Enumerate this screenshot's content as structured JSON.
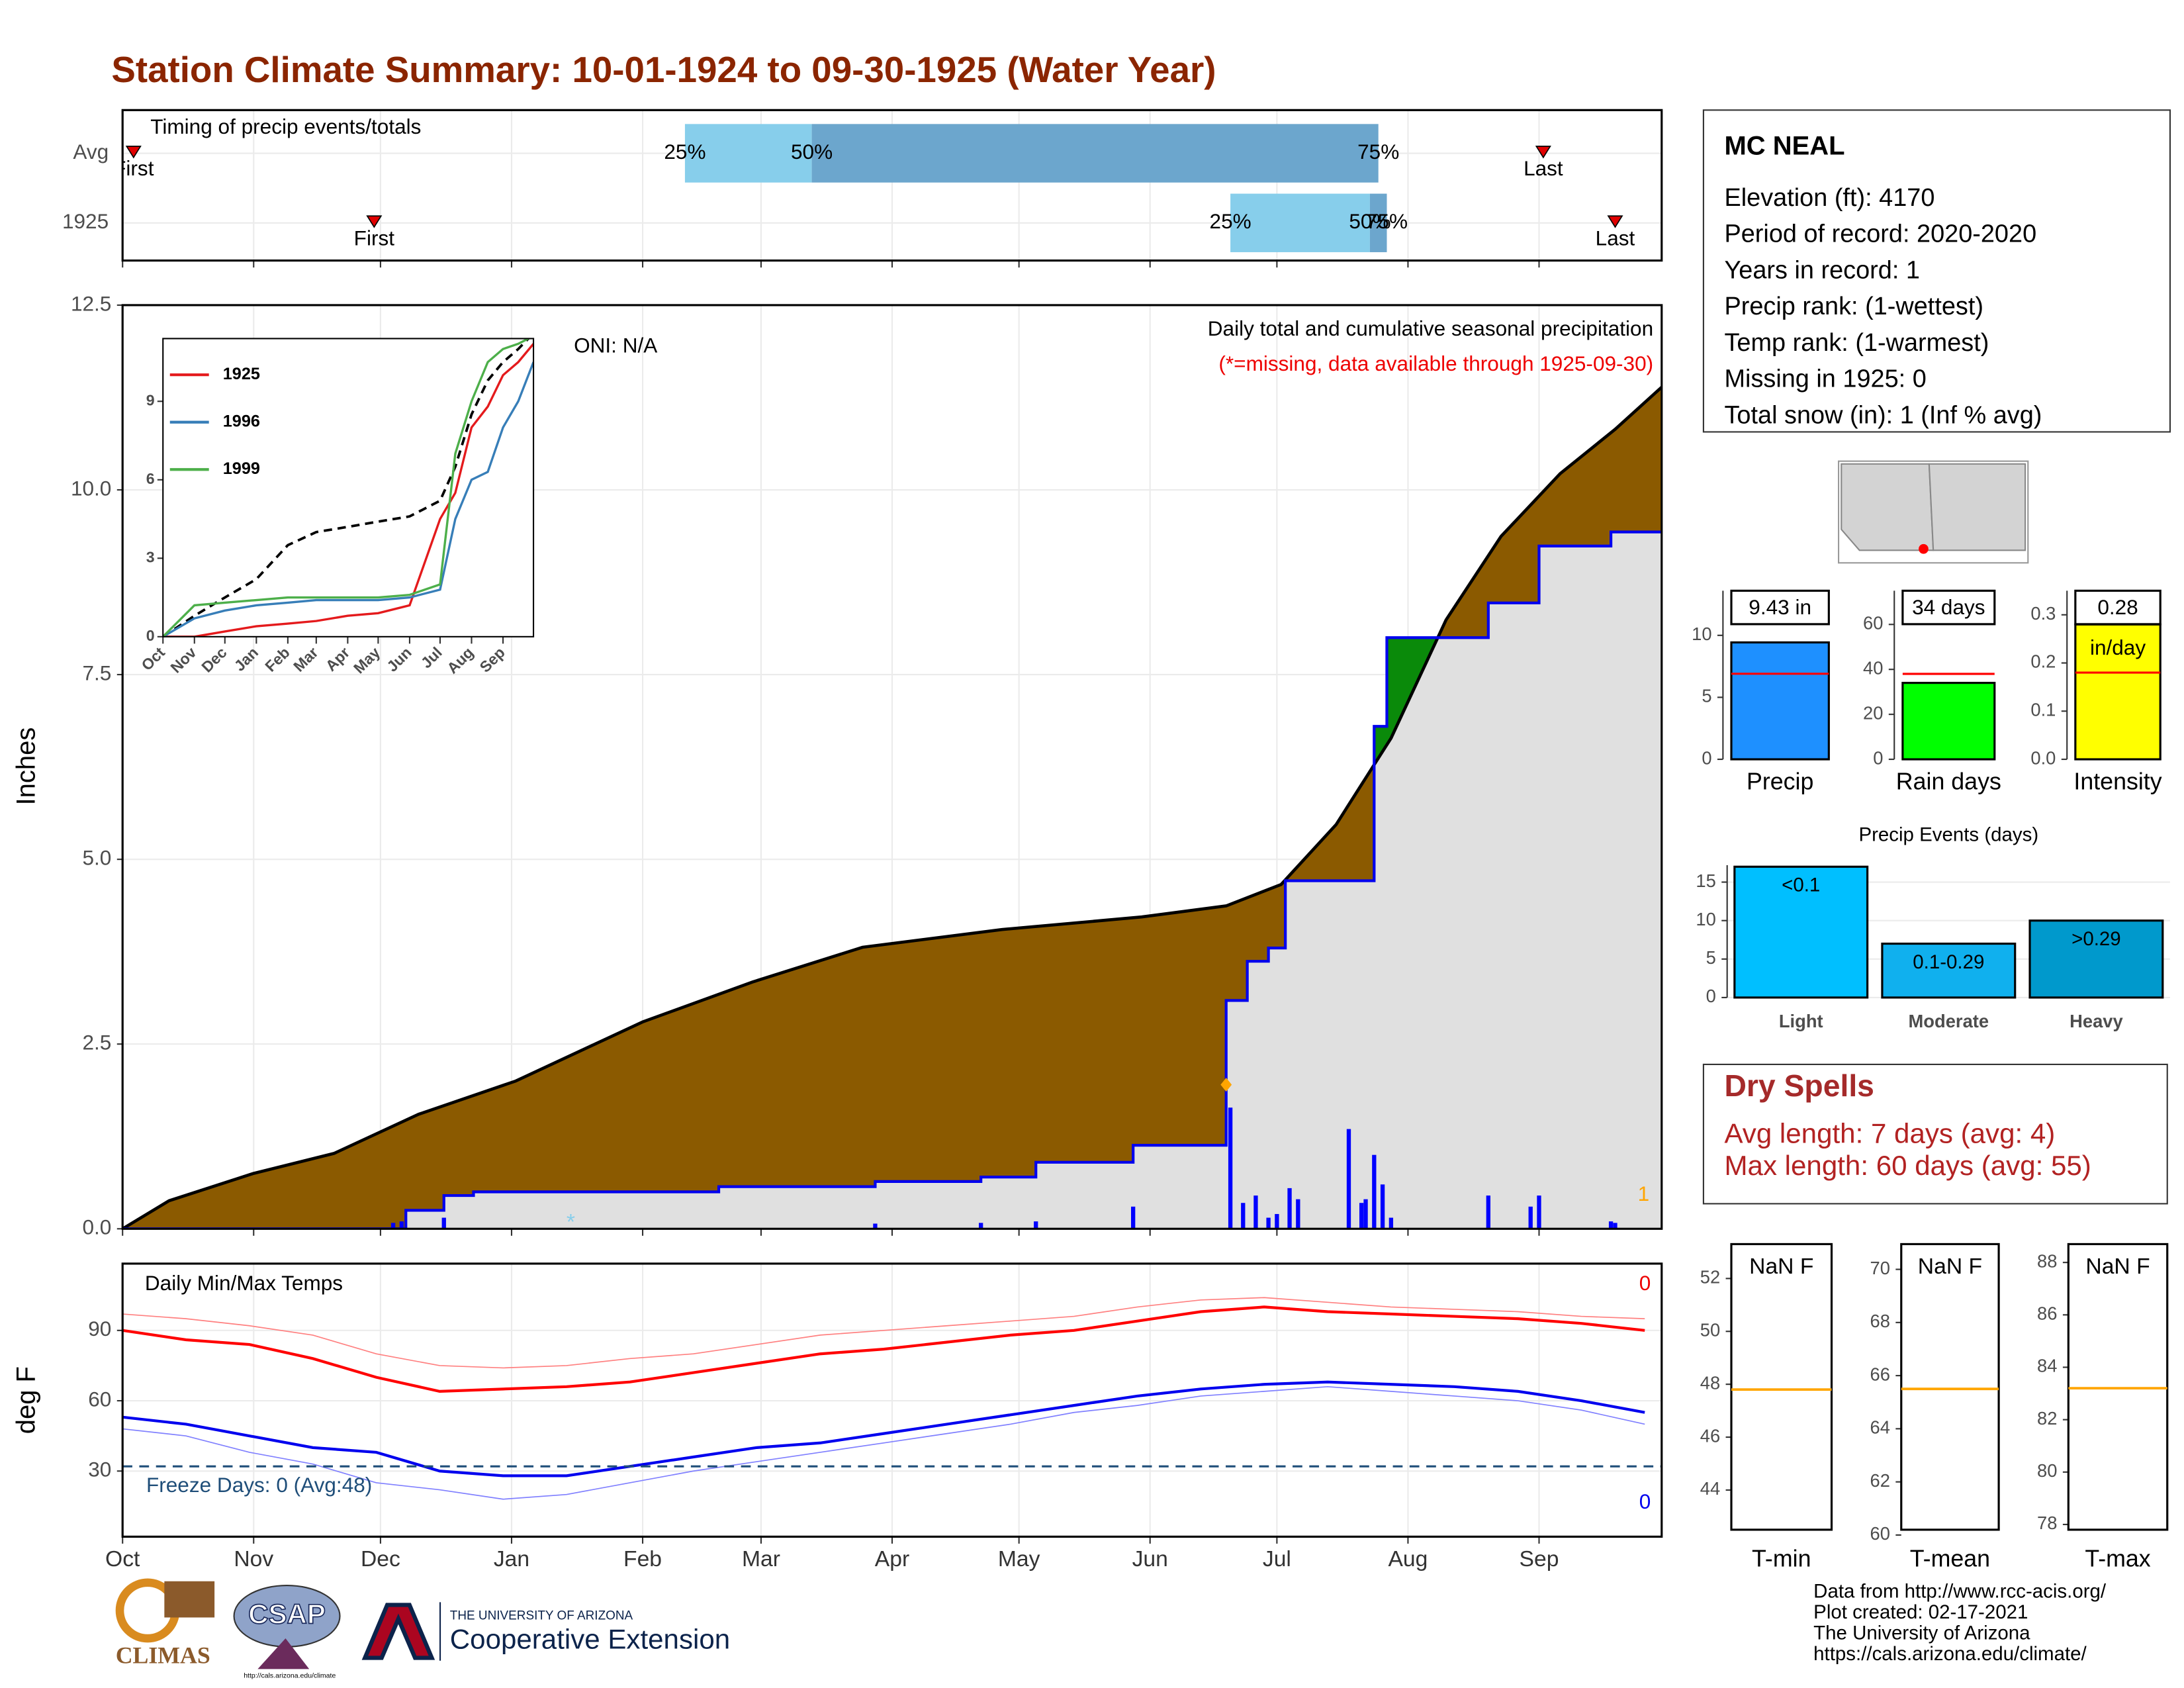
{
  "title": "Station Climate Summary: 10-01-1924 to 09-30-1925 (Water Year)",
  "chart_data": [
    {
      "type": "timing",
      "title": "Timing of precip events/totals",
      "categories": [
        "Avg",
        "1925"
      ],
      "first": [
        2.6,
        59.5
      ],
      "q25": [
        133,
        262
      ],
      "q50": [
        163,
        295
      ],
      "q75": [
        297,
        299
      ],
      "last": [
        336,
        353
      ],
      "labels": {
        "first": "First",
        "last": "Last",
        "q25": "25%",
        "q50": "50%",
        "q75": "75%"
      },
      "colors": {
        "q25": "#87ceeb",
        "q50": "#6ca6cd",
        "marker": "#e00000"
      },
      "xlim": [
        0,
        364
      ],
      "xticks": [
        0,
        31,
        61,
        92,
        123,
        151,
        182,
        212,
        243,
        273,
        304,
        335
      ],
      "grid": true
    },
    {
      "type": "cumulative",
      "title": "Daily total and cumulative seasonal precipitation",
      "subtitle": "(*=missing, data available through 1925-09-30)",
      "annotation": "ONI: N/A",
      "ylabel": "Inches",
      "xlim": [
        0,
        364
      ],
      "xticks": [
        0,
        31,
        61,
        92,
        123,
        151,
        182,
        212,
        243,
        273,
        304,
        335
      ],
      "ylim": [
        0,
        12.5
      ],
      "yticks": [
        {
          "value": 0,
          "label": "0.0"
        },
        2.5,
        {
          "value": 5,
          "label": "5.0"
        },
        7.5,
        {
          "value": 10,
          "label": "10.0"
        },
        12.5
      ],
      "grid": true,
      "average": {
        "color": "#000000",
        "x": [
          0,
          11,
          31,
          50,
          70,
          93,
          123,
          149,
          175,
          208,
          241,
          261,
          274,
          287,
          300,
          313,
          326,
          340,
          353,
          364
        ],
        "values": [
          0,
          0.38,
          0.75,
          1.02,
          1.55,
          2.0,
          2.8,
          3.34,
          3.81,
          4.05,
          4.22,
          4.37,
          4.66,
          5.47,
          6.64,
          8.24,
          9.37,
          10.22,
          10.82,
          11.39
        ]
      },
      "observed": {
        "color": "#0000ee",
        "x": [
          0,
          67,
          76,
          83,
          141,
          178,
          203,
          216,
          239,
          261,
          266,
          271,
          275,
          296,
          299,
          323,
          335,
          352,
          364
        ],
        "values": [
          0,
          0.25,
          0.45,
          0.5,
          0.57,
          0.64,
          0.7,
          0.9,
          1.13,
          3.09,
          3.62,
          3.8,
          4.71,
          6.8,
          8.0,
          8.47,
          9.24,
          9.43,
          9.43
        ]
      },
      "daily": {
        "color": "#0000ff",
        "x": [
          64,
          66,
          76,
          178,
          203,
          216,
          239,
          262,
          265,
          268,
          271,
          273,
          276,
          278,
          290,
          293,
          294,
          296,
          298,
          300,
          323,
          333,
          335,
          352,
          353
        ],
        "values": [
          0.08,
          0.1,
          0.15,
          0.07,
          0.08,
          0.1,
          0.3,
          1.64,
          0.35,
          0.45,
          0.15,
          0.2,
          0.55,
          0.4,
          1.35,
          0.35,
          0.4,
          1.0,
          0.6,
          0.15,
          0.45,
          0.3,
          0.45,
          0.1,
          0.08
        ]
      },
      "fills": {
        "below": "#8b5a00",
        "above": "#0a8a0a",
        "observed": "#e0e0e0"
      },
      "peak_marker": {
        "x": 261,
        "value": 1.95,
        "color": "#ffa500"
      },
      "missing_symbol": "*",
      "missing_x": [
        106
      ],
      "missing_color": "#87ceeb",
      "count_label": "1",
      "count_color": "#ffa500"
    },
    {
      "type": "line",
      "xlim": [
        0,
        365
      ],
      "ylim": [
        0,
        11.4
      ],
      "yticks": [
        0,
        3,
        6,
        9
      ],
      "xticks": [
        {
          "value": 0,
          "label": "Oct"
        },
        {
          "value": 31,
          "label": "Nov"
        },
        {
          "value": 61,
          "label": "Dec"
        },
        {
          "value": 92,
          "label": "Jan"
        },
        {
          "value": 123,
          "label": "Feb"
        },
        {
          "value": 151,
          "label": "Mar"
        },
        {
          "value": 182,
          "label": "Apr"
        },
        {
          "value": 212,
          "label": "May"
        },
        {
          "value": 243,
          "label": "Jun"
        },
        {
          "value": 273,
          "label": "Jul"
        },
        {
          "value": 304,
          "label": "Aug"
        },
        {
          "value": 335,
          "label": "Sep"
        }
      ],
      "x": [
        0,
        31,
        61,
        92,
        123,
        151,
        182,
        212,
        243,
        273,
        288,
        304,
        320,
        335,
        350,
        365
      ],
      "series": [
        {
          "name": "1925",
          "color": "#e41a1c",
          "values": [
            0,
            0,
            0.2,
            0.4,
            0.5,
            0.6,
            0.8,
            0.9,
            1.2,
            4.5,
            5.5,
            8.0,
            8.8,
            10.0,
            10.5,
            11.2
          ]
        },
        {
          "name": "1996",
          "color": "#377eb8",
          "values": [
            0,
            0.7,
            1.0,
            1.2,
            1.3,
            1.4,
            1.4,
            1.4,
            1.5,
            1.8,
            4.5,
            6.0,
            6.3,
            8.0,
            9.0,
            10.5
          ]
        },
        {
          "name": "1999",
          "color": "#4daf4a",
          "values": [
            0,
            1.2,
            1.3,
            1.4,
            1.5,
            1.5,
            1.5,
            1.5,
            1.6,
            2.0,
            7.0,
            9.0,
            10.5,
            11.0,
            11.2,
            11.5
          ]
        }
      ],
      "average": {
        "color": "#000000",
        "values": [
          0,
          0.8,
          1.5,
          2.2,
          3.5,
          4.0,
          4.2,
          4.4,
          4.6,
          5.2,
          6.5,
          8.5,
          9.8,
          10.5,
          11.0,
          11.6
        ]
      }
    },
    {
      "type": "temperature",
      "title": "Daily Min/Max Temps",
      "ylabel": "deg F",
      "xlim": [
        0,
        364
      ],
      "xticks": [
        {
          "value": 0,
          "label": "Oct"
        },
        {
          "value": 31,
          "label": "Nov"
        },
        {
          "value": 61,
          "label": "Dec"
        },
        {
          "value": 92,
          "label": "Jan"
        },
        {
          "value": 123,
          "label": "Feb"
        },
        {
          "value": 151,
          "label": "Mar"
        },
        {
          "value": 182,
          "label": "Apr"
        },
        {
          "value": 212,
          "label": "May"
        },
        {
          "value": 243,
          "label": "Jun"
        },
        {
          "value": 273,
          "label": "Jul"
        },
        {
          "value": 304,
          "label": "Aug"
        },
        {
          "value": 335,
          "label": "Sep"
        }
      ],
      "ylim": [
        2,
        118.5
      ],
      "yticks": [
        30,
        60,
        90
      ],
      "grid": true,
      "x": [
        0,
        15,
        30,
        45,
        60,
        75,
        90,
        105,
        120,
        135,
        150,
        165,
        180,
        195,
        210,
        225,
        240,
        255,
        270,
        285,
        300,
        315,
        330,
        345,
        360
      ],
      "series": [
        {
          "color": "#ff8080",
          "width": 0.8,
          "values": [
            97,
            95,
            92,
            88,
            80,
            75,
            74,
            75,
            78,
            80,
            84,
            88,
            90,
            92,
            94,
            96,
            100,
            103,
            104,
            102,
            100,
            99,
            98,
            96,
            95
          ]
        },
        {
          "color": "#ff0000",
          "width": 2,
          "values": [
            90,
            86,
            84,
            78,
            70,
            64,
            65,
            66,
            68,
            72,
            76,
            80,
            82,
            85,
            88,
            90,
            94,
            98,
            100,
            98,
            97,
            96,
            95,
            93,
            90
          ]
        },
        {
          "color": "#8080ff",
          "width": 0.8,
          "values": [
            48,
            45,
            38,
            33,
            25,
            22,
            18,
            20,
            25,
            30,
            34,
            38,
            42,
            46,
            50,
            55,
            58,
            62,
            64,
            66,
            64,
            62,
            60,
            56,
            50
          ]
        },
        {
          "color": "#0000ee",
          "width": 2,
          "values": [
            53,
            50,
            45,
            40,
            38,
            30,
            28,
            28,
            32,
            36,
            40,
            42,
            46,
            50,
            54,
            58,
            62,
            65,
            67,
            68,
            67,
            66,
            64,
            60,
            55
          ]
        }
      ],
      "freeze_line": 32,
      "freeze_color": "#1f4e79",
      "freeze_label": "Freeze Days: 0 (Avg:48)",
      "max_count": 0,
      "min_count": 0
    },
    {
      "type": "single_bar",
      "label": "Precip",
      "value": 9.43,
      "value_label": "9.43 in",
      "average": 6.9,
      "color": "#1e90ff",
      "average_color": "#ff0000",
      "ylim": [
        0,
        13.6
      ],
      "yticks": [
        0,
        5,
        10
      ]
    },
    {
      "type": "single_bar",
      "label": "Rain days",
      "value": 34,
      "value_label": "34 days",
      "average": 38,
      "color": "#00ff00",
      "average_color": "#ff0000",
      "ylim": [
        0,
        75
      ],
      "yticks": [
        0,
        20,
        40,
        60
      ]
    },
    {
      "type": "single_bar",
      "label": "Intensity",
      "value": 0.28,
      "value_label": "0.28",
      "unit": "in/day",
      "average": 0.18,
      "color": "#ffff00",
      "average_color": "#ff0000",
      "ylim": [
        0,
        0.35
      ],
      "yticks": [
        {
          "value": 0,
          "label": "0.0"
        },
        0.1,
        0.2,
        0.3
      ]
    },
    {
      "type": "bar",
      "title": "Precip Events (days)",
      "categories": [
        "Light",
        "Moderate",
        "Heavy"
      ],
      "values": [
        17,
        7,
        10
      ],
      "bar_labels": [
        "<0.1",
        "0.1-0.29",
        ">0.29"
      ],
      "colors": [
        "#00bfff",
        "#10b0ee",
        "#0099cc"
      ],
      "ylim": [
        0,
        17.2
      ],
      "yticks": [
        0,
        5,
        10,
        15
      ],
      "grid": true
    },
    {
      "type": "reference",
      "label": "T-min",
      "value_label": "NaN F",
      "reference": 47.8,
      "color": "#ffa500",
      "ylim": [
        42.5,
        53.3
      ],
      "yticks": [
        44,
        46,
        48,
        50,
        52
      ]
    },
    {
      "type": "reference",
      "label": "T-mean",
      "value_label": "NaN F",
      "reference": 65.5,
      "color": "#ffa500",
      "ylim": [
        60.2,
        70.95
      ],
      "yticks": [
        60,
        62,
        64,
        66,
        68,
        70
      ]
    },
    {
      "type": "reference",
      "label": "T-max",
      "value_label": "NaN F",
      "reference": 83.2,
      "color": "#ffa500",
      "ylim": [
        77.8,
        88.7
      ],
      "yticks": [
        78,
        80,
        82,
        84,
        86,
        88
      ]
    }
  ],
  "station": {
    "name": "MC NEAL",
    "lines": [
      "Elevation (ft): 4170",
      "Period of record: 2020-2020",
      "Years in record: 1",
      "Precip rank:  (1-wettest)",
      "Temp rank:  (1-warmest)",
      "Missing in 1925: 0",
      "Total snow (in): 1 (Inf % avg)"
    ]
  },
  "dry_spells": {
    "title": "Dry Spells",
    "lines": [
      "Avg length: 7 days (avg: 4)",
      "Max length: 60 days (avg: 55)"
    ]
  },
  "footer": [
    "Data from http://www.rcc-acis.org/",
    "Plot created: 02-17-2021",
    "The University of Arizona",
    "https://cals.arizona.edu/climate/"
  ],
  "logos": {
    "climas": "CLIMAS",
    "csap": "CSAP",
    "csap_url": "http://cals.arizona.edu/climate",
    "university": "THE UNIVERSITY OF ARIZONA",
    "extension": "Cooperative Extension"
  }
}
